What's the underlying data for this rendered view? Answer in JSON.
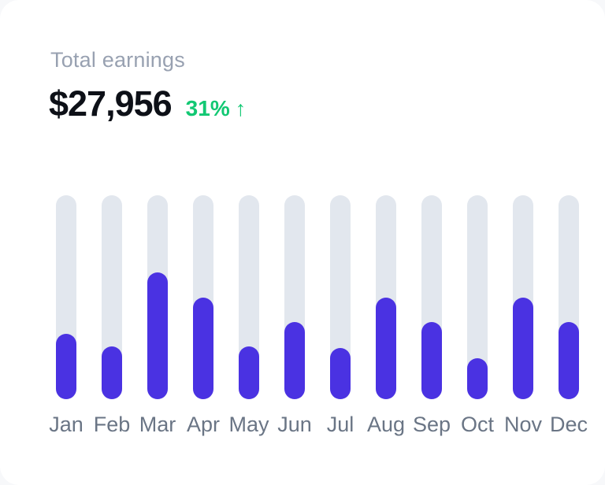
{
  "card": {
    "title": "Total earnings",
    "value": "$27,956",
    "delta": "31%",
    "delta_arrow": "↑"
  },
  "colors": {
    "page_bg": "#F7F8FA",
    "card_bg": "#FFFFFF",
    "title_text": "#98A1B1",
    "value_text": "#0D1017",
    "delta_text": "#12C873",
    "label_text": "#6A7585",
    "bar_track": "#E2E7EE",
    "bar_fill": "#4A32E2"
  },
  "chart_data": {
    "type": "bar",
    "title": "Total earnings",
    "categories": [
      "Jan",
      "Feb",
      "Mar",
      "Apr",
      "May",
      "Jun",
      "Jul",
      "Aug",
      "Sep",
      "Oct",
      "Nov",
      "Dec"
    ],
    "values": [
      32,
      26,
      62,
      50,
      26,
      38,
      25,
      50,
      38,
      20,
      50,
      38
    ],
    "value_unit": "percent_of_track_max",
    "xlabel": "",
    "ylabel": "",
    "ylim": [
      0,
      100
    ],
    "grid": false,
    "legend": false,
    "axes_shown": false,
    "bar_style": "rounded pill over full-height light track"
  }
}
